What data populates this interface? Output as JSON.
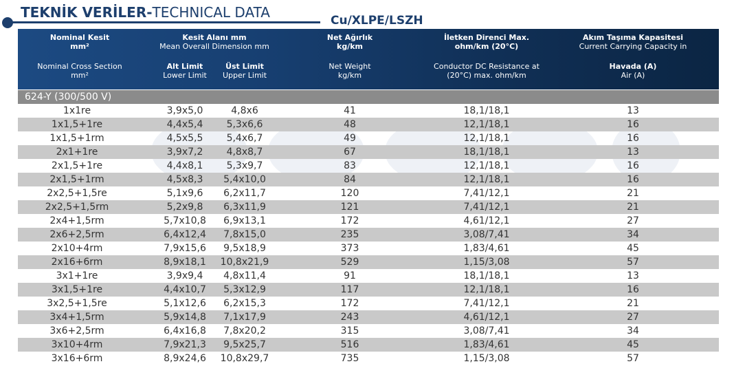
{
  "title": {
    "bold": "TEKNİK VERİLER-",
    "light": "TECHNICAL DATA"
  },
  "subtitle": "Cu/XLPE/LSZH",
  "header": {
    "col1": {
      "tr": "Nominal Kesit",
      "tr_unit": "mm²",
      "en": "Nominal Cross Section",
      "en_unit": "mm²"
    },
    "col2": {
      "tr": "Kesit Alanı mm",
      "en": "Mean Overall Dimension mm"
    },
    "col2a": {
      "tr": "Alt Limit",
      "en": "Lower Limit"
    },
    "col2b": {
      "tr": "Üst Limit",
      "en": "Upper Limit"
    },
    "col3": {
      "tr": "Net Ağırlık",
      "tr_unit": "kg/km",
      "en": "Net Weight",
      "en_unit": "kg/km"
    },
    "col4": {
      "tr": "İletken Direnci Max.",
      "tr_unit": "ohm/km (20°C)",
      "en": "Conductor DC Resistance at",
      "en_unit": "(20°C) max. ohm/km"
    },
    "col5": {
      "tr": "Akım Taşıma Kapasitesi",
      "tr2": "Current Carrying Capacity in",
      "en": "Havada (A)",
      "en_unit": "Air (A)"
    }
  },
  "section_label": "624-Y (300/500 V)",
  "rows": [
    [
      "1x1re",
      "3,9x5,0",
      "4,8x6",
      "41",
      "18,1/18,1",
      "13"
    ],
    [
      "1x1,5+1re",
      "4,4x5,4",
      "5,3x6,6",
      "48",
      "12,1/18,1",
      "16"
    ],
    [
      "1x1,5+1rm",
      "4,5x5,5",
      "5,4x6,7",
      "49",
      "12,1/18,1",
      "16"
    ],
    [
      "2x1+1re",
      "3,9x7,2",
      "4,8x8,7",
      "67",
      "18,1/18,1",
      "13"
    ],
    [
      "2x1,5+1re",
      "4,4x8,1",
      "5,3x9,7",
      "83",
      "12,1/18,1",
      "16"
    ],
    [
      "2x1,5+1rm",
      "4,5x8,3",
      "5,4x10,0",
      "84",
      "12,1/18,1",
      "16"
    ],
    [
      "2x2,5+1,5re",
      "5,1x9,6",
      "6,2x11,7",
      "120",
      "7,41/12,1",
      "21"
    ],
    [
      "2x2,5+1,5rm",
      "5,2x9,8",
      "6,3x11,9",
      "121",
      "7,41/12,1",
      "21"
    ],
    [
      "2x4+1,5rm",
      "5,7x10,8",
      "6,9x13,1",
      "172",
      "4,61/12,1",
      "27"
    ],
    [
      "2x6+2,5rm",
      "6,4x12,4",
      "7,8x15,0",
      "235",
      "3,08/7,41",
      "34"
    ],
    [
      "2x10+4rm",
      "7,9x15,6",
      "9,5x18,9",
      "373",
      "1,83/4,61",
      "45"
    ],
    [
      "2x16+6rm",
      "8,9x18,1",
      "10,8x21,9",
      "529",
      "1,15/3,08",
      "57"
    ],
    [
      "3x1+1re",
      "3,9x9,4",
      "4,8x11,4",
      "91",
      "18,1/18,1",
      "13"
    ],
    [
      "3x1,5+1re",
      "4,4x10,7",
      "5,3x12,9",
      "117",
      "12,1/18,1",
      "16"
    ],
    [
      "3x2,5+1,5re",
      "5,1x12,6",
      "6,2x15,3",
      "172",
      "7,41/12,1",
      "21"
    ],
    [
      "3x4+1,5rm",
      "5,9x14,8",
      "7,1x17,9",
      "243",
      "4,61/12,1",
      "27"
    ],
    [
      "3x6+2,5rm",
      "6,4x16,8",
      "7,8x20,2",
      "315",
      "3,08/7,41",
      "34"
    ],
    [
      "3x10+4rm",
      "7,9x21,3",
      "9,5x25,7",
      "516",
      "1,83/4,61",
      "45"
    ],
    [
      "3x16+6rm",
      "8,9x24,6",
      "10,8x29,7",
      "735",
      "1,15/3,08",
      "57"
    ]
  ],
  "colors": {
    "brand": "#1d3f6d",
    "header_start": "#1c4a82",
    "header_end": "#0b2543",
    "section_bg": "#8b8b8b",
    "alt_row": "#c9c9c9"
  }
}
